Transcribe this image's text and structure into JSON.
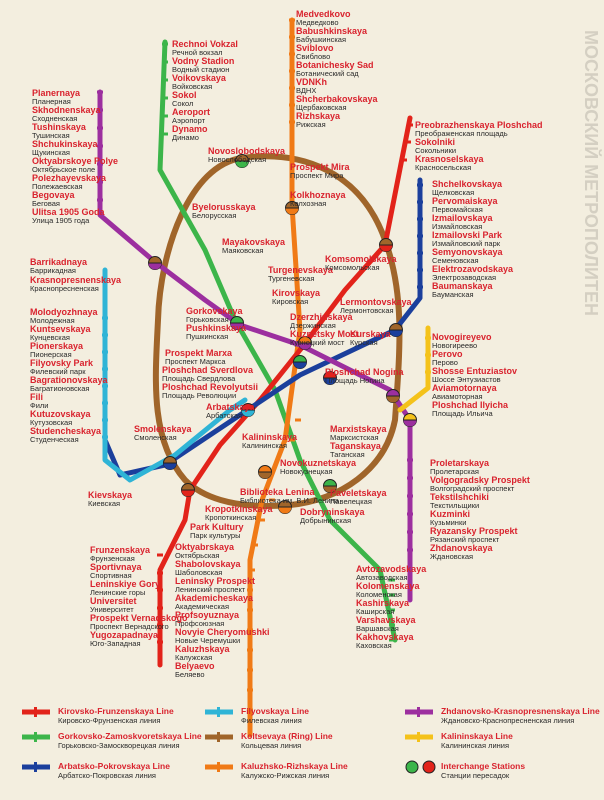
{
  "lines": {
    "red": {
      "color": "#e2231a"
    },
    "green": {
      "color": "#3cb54a"
    },
    "blue": {
      "color": "#1b3f9c"
    },
    "cyan": {
      "color": "#2fb4d6"
    },
    "brown": {
      "color": "#a0652a"
    },
    "orange": {
      "color": "#f07a16"
    },
    "purple": {
      "color": "#9c2f9f"
    },
    "yellow": {
      "color": "#f4c21a"
    }
  },
  "stations": [
    {
      "en": "Medvedkovo",
      "ru": "Медведково"
    },
    {
      "en": "Babushkinskaya",
      "ru": "Бабушкинская"
    },
    {
      "en": "Sviblovo",
      "ru": "Свиблово"
    },
    {
      "en": "Botanichesky Sad",
      "ru": "Ботанический сад"
    },
    {
      "en": "VDNKh",
      "ru": "ВДНХ"
    },
    {
      "en": "Shcherbakovskaya",
      "ru": "Щербаковская"
    },
    {
      "en": "Rizhskaya",
      "ru": "Рижская"
    },
    {
      "en": "Rechnoi Vokzal",
      "ru": "Речной вокзал"
    },
    {
      "en": "Vodny Stadion",
      "ru": "Водный стадион"
    },
    {
      "en": "Voikovskaya",
      "ru": "Войковская"
    },
    {
      "en": "Sokol",
      "ru": "Сокол"
    },
    {
      "en": "Aeroport",
      "ru": "Аэропорт"
    },
    {
      "en": "Dynamo",
      "ru": "Динамо"
    },
    {
      "en": "Planernaya",
      "ru": "Планерная"
    },
    {
      "en": "Skhodnenskaya",
      "ru": "Сходненская"
    },
    {
      "en": "Tushinskaya",
      "ru": "Тушинская"
    },
    {
      "en": "Shchukinskaya",
      "ru": "Щукинская"
    },
    {
      "en": "Oktyabrskoye Polye",
      "ru": "Октябрьское поле"
    },
    {
      "en": "Polezhayevskaya",
      "ru": "Полежаевская"
    },
    {
      "en": "Begovaya",
      "ru": "Беговая"
    },
    {
      "en": "Ulitsa 1905 Goda",
      "ru": "Улица 1905 года"
    },
    {
      "en": "Novoslobodskaya",
      "ru": "Новослободская"
    },
    {
      "en": "Byelorusskaya",
      "ru": "Белорусская"
    },
    {
      "en": "Prospekt Mira",
      "ru": "Проспект Мира"
    },
    {
      "en": "Kolkhoznaya",
      "ru": "Колхозная"
    },
    {
      "en": "Preobrazhenskaya Ploshchad",
      "ru": "Преображенская площадь"
    },
    {
      "en": "Sokolniki",
      "ru": "Сокольники"
    },
    {
      "en": "Krasnoselskaya",
      "ru": "Красносельская"
    },
    {
      "en": "Shchelkovskaya",
      "ru": "Щелковская"
    },
    {
      "en": "Pervomaiskaya",
      "ru": "Первомайская"
    },
    {
      "en": "Izmailovskaya",
      "ru": "Измайловская"
    },
    {
      "en": "Izmailovski Park",
      "ru": "Измайловский парк"
    },
    {
      "en": "Semyonovskaya",
      "ru": "Семеновская"
    },
    {
      "en": "Elektrozavodskaya",
      "ru": "Электрозаводская"
    },
    {
      "en": "Baumanskaya",
      "ru": "Бауманская"
    },
    {
      "en": "Barrikadnaya",
      "ru": "Баррикадная"
    },
    {
      "en": "Krasnopresnenskaya",
      "ru": "Краснопресненская"
    },
    {
      "en": "Mayakovskaya",
      "ru": "Маяковская"
    },
    {
      "en": "Turgenevskaya",
      "ru": "Тургеневская"
    },
    {
      "en": "Komsomolskaya",
      "ru": "Комсомольская"
    },
    {
      "en": "Kirovskaya",
      "ru": "Кировская"
    },
    {
      "en": "Lermontovskaya",
      "ru": "Лермонтовская"
    },
    {
      "en": "Molodyozhnaya",
      "ru": "Молодежная"
    },
    {
      "en": "Kuntsevskaya",
      "ru": "Кунцевская"
    },
    {
      "en": "Pionerskaya",
      "ru": "Пионерская"
    },
    {
      "en": "Filyovsky Park",
      "ru": "Филевский парк"
    },
    {
      "en": "Bagrationovskaya",
      "ru": "Багратионовская"
    },
    {
      "en": "Fili",
      "ru": "Фили"
    },
    {
      "en": "Kutuzovskaya",
      "ru": "Кутузовская"
    },
    {
      "en": "Studencheskaya",
      "ru": "Студенческая"
    },
    {
      "en": "Gorkovskaya",
      "ru": "Горьковская"
    },
    {
      "en": "Pushkinskaya",
      "ru": "Пушкинская"
    },
    {
      "en": "Dzerzhinskaya",
      "ru": "Дзержинская"
    },
    {
      "en": "Kuznetsky Most",
      "ru": "Кузнецкий мост"
    },
    {
      "en": "Kurskaya",
      "ru": "Курская"
    },
    {
      "en": "Novogireyevo",
      "ru": "Новогиреево"
    },
    {
      "en": "Perovo",
      "ru": "Перово"
    },
    {
      "en": "Shosse Entuziastov",
      "ru": "Шоссе Энтузиастов"
    },
    {
      "en": "Aviamotornaya",
      "ru": "Авиамоторная"
    },
    {
      "en": "Ploshchad Ilyicha",
      "ru": "Площадь Ильича"
    },
    {
      "en": "Prospekt Marxa",
      "ru": "Проспект Маркса"
    },
    {
      "en": "Ploshchad Sverdlova",
      "ru": "Площадь Свердлова"
    },
    {
      "en": "Ploshchad Revolyutsii",
      "ru": "Площадь Революции"
    },
    {
      "en": "Ploshchad Nogina",
      "ru": "Площадь Ногина"
    },
    {
      "en": "Arbatskaya",
      "ru": "Арбатская"
    },
    {
      "en": "Smolenskaya",
      "ru": "Смоленская"
    },
    {
      "en": "Marxistskaya",
      "ru": "Марксистская"
    },
    {
      "en": "Taganskaya",
      "ru": "Таганская"
    },
    {
      "en": "Kalininskaya",
      "ru": "Калининская"
    },
    {
      "en": "Novokuznetskaya",
      "ru": "Новокузнецкая"
    },
    {
      "en": "Biblioteka Lenina",
      "ru": "Библиотека им. В.И. Ленина"
    },
    {
      "en": "Kievskaya",
      "ru": "Киевская"
    },
    {
      "en": "Kropotkinskaya",
      "ru": "Кропоткинская"
    },
    {
      "en": "Park Kultury",
      "ru": "Парк культуры"
    },
    {
      "en": "Proletarskaya",
      "ru": "Пролетарская"
    },
    {
      "en": "Volgogradsky Prospekt",
      "ru": "Волгоградский проспект"
    },
    {
      "en": "Tekstilshchiki",
      "ru": "Текстильщики"
    },
    {
      "en": "Kuzminki",
      "ru": "Кузьминки"
    },
    {
      "en": "Ryazansky Prospekt",
      "ru": "Рязанский проспект"
    },
    {
      "en": "Zhdanovskaya",
      "ru": "Ждановская"
    },
    {
      "en": "Paveletskaya",
      "ru": "Павелецкая"
    },
    {
      "en": "Dobryninskaya",
      "ru": "Добрынинская"
    },
    {
      "en": "Oktyabrskaya",
      "ru": "Октябрьская"
    },
    {
      "en": "Shabolovskaya",
      "ru": "Шаболовская"
    },
    {
      "en": "Leninsky Prospekt",
      "ru": "Ленинский проспект"
    },
    {
      "en": "Akademicheskaya",
      "ru": "Академическая"
    },
    {
      "en": "Profsoyuznaya",
      "ru": "Профсоюзная"
    },
    {
      "en": "Novyie Cheryomushki",
      "ru": "Новые Черемушки"
    },
    {
      "en": "Kaluzhskaya",
      "ru": "Калужская"
    },
    {
      "en": "Belyaevo",
      "ru": "Беляево"
    },
    {
      "en": "Frunzenskaya",
      "ru": "Фрунзенская"
    },
    {
      "en": "Sportivnaya",
      "ru": "Спортивная"
    },
    {
      "en": "Leninskiye Gory",
      "ru": "Ленинские горы"
    },
    {
      "en": "Universitet",
      "ru": "Университет"
    },
    {
      "en": "Prospekt Vernadskogo",
      "ru": "Проспект Вернадского"
    },
    {
      "en": "Yugozapadnaya",
      "ru": "Юго-Западная"
    },
    {
      "en": "Avtozavodskaya",
      "ru": "Автозаводская"
    },
    {
      "en": "Kolomenskaya",
      "ru": "Коломенская"
    },
    {
      "en": "Kashirskaya",
      "ru": "Каширская"
    },
    {
      "en": "Varshavskaya",
      "ru": "Варшавская"
    },
    {
      "en": "Kakhovskaya",
      "ru": "Каховская"
    }
  ],
  "legend": [
    {
      "en": "Kirovsko-Frunzenskaya Line",
      "ru": "Кировско-Фрунзенская линия",
      "color": "#e2231a"
    },
    {
      "en": "Gorkovsko-Zamoskvoretskaya Line",
      "ru": "Горьковско-Замоскворецкая линия",
      "color": "#3cb54a"
    },
    {
      "en": "Arbatsko-Pokrovskaya Line",
      "ru": "Арбатско-Покровская линия",
      "color": "#1b3f9c"
    },
    {
      "en": "Filyovskaya Line",
      "ru": "Филевская линия",
      "color": "#2fb4d6"
    },
    {
      "en": "Koltsevaya (Ring) Line",
      "ru": "Кольцевая линия",
      "color": "#a0652a"
    },
    {
      "en": "Kaluzhsko-Rizhskaya Line",
      "ru": "Калужско-Рижская линия",
      "color": "#f07a16"
    },
    {
      "en": "Zhdanovsko-Krasnopresnenskaya Line",
      "ru": "Ждановско-Краснопресненская линия",
      "color": "#9c2f9f"
    },
    {
      "en": "Kalininskaya Line",
      "ru": "Калининская линия",
      "color": "#f4c21a"
    },
    {
      "en": "Interchange Stations",
      "ru": "Станции пересадок",
      "color": "#e2231a"
    }
  ],
  "edge_text": "МОСКОВСКИЙ МЕТРОПОЛИТЕН"
}
